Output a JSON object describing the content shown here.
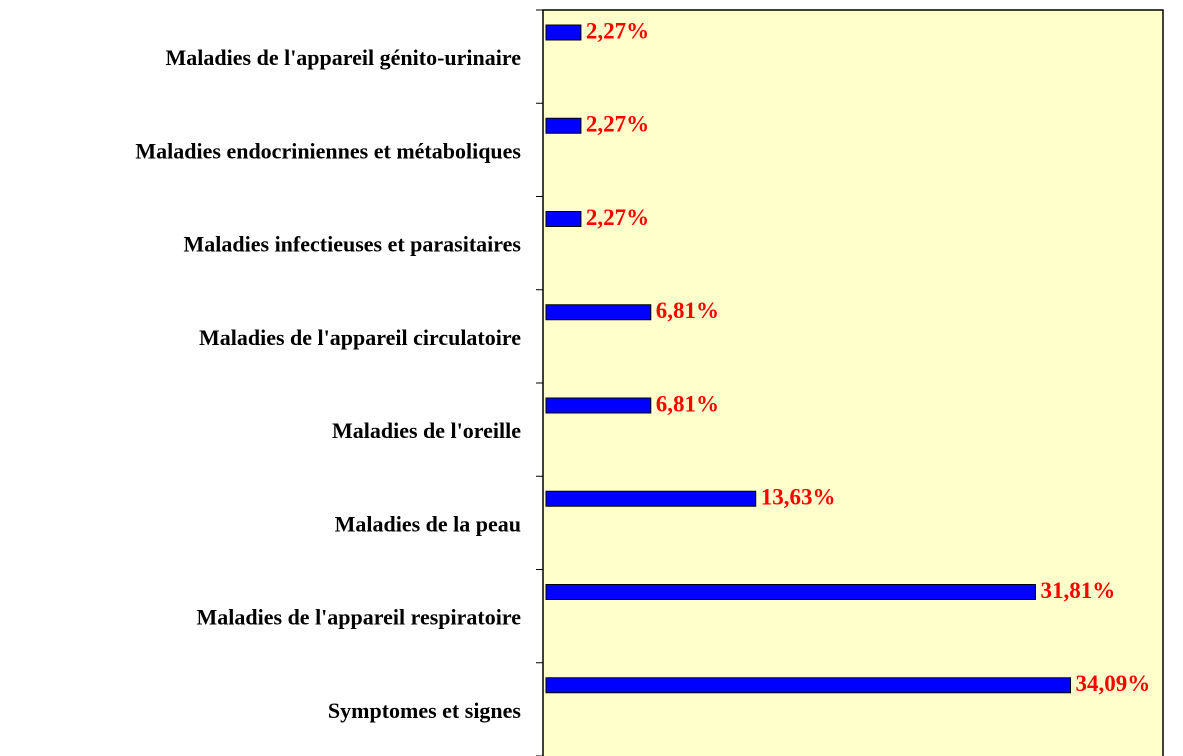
{
  "chart_data": {
    "type": "bar",
    "orientation": "horizontal",
    "categories": [
      "Maladies de l'appareil génito-urinaire",
      "Maladies endocriniennes et métaboliques",
      "Maladies infectieuses et parasitaires",
      "Maladies de l'appareil circulatoire",
      "Maladies de l'oreille",
      "Maladies de la peau",
      "Maladies de l'appareil respiratoire",
      "Symptomes et signes"
    ],
    "values": [
      2.27,
      2.27,
      2.27,
      6.81,
      6.81,
      13.63,
      31.81,
      34.09
    ],
    "value_labels": [
      "2,27%",
      "2,27%",
      "2,27%",
      "6,81%",
      "6,81%",
      "13,63%",
      "31,81%",
      "34,09%"
    ],
    "color": "#0000ff",
    "label_color": "#ff0000",
    "plot_background": "#ffffcc",
    "xlim": [
      0,
      40.1
    ]
  }
}
